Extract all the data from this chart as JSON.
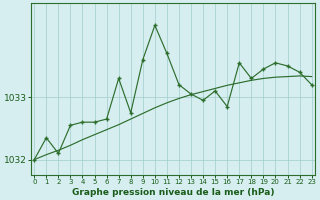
{
  "title": "Graphe pression niveau de la mer (hPa)",
  "background_color": "#d6eef0",
  "plot_background": "#d6eef0",
  "line_color": "#2d6e2d",
  "grid_color": "#a0cccc",
  "x_values": [
    0,
    1,
    2,
    3,
    4,
    5,
    6,
    7,
    8,
    9,
    10,
    11,
    12,
    13,
    14,
    15,
    16,
    17,
    18,
    19,
    20,
    21,
    22,
    23
  ],
  "y_main": [
    1032.0,
    1032.35,
    1032.1,
    1032.55,
    1032.6,
    1032.6,
    1032.65,
    1033.3,
    1032.75,
    1033.6,
    1034.15,
    1033.7,
    1033.2,
    1033.05,
    1032.95,
    1033.1,
    1032.85,
    1033.55,
    1033.3,
    1033.45,
    1033.55,
    1033.5,
    1033.4,
    1033.2
  ],
  "y_smooth": [
    1032.0,
    1032.08,
    1032.15,
    1032.23,
    1032.32,
    1032.4,
    1032.48,
    1032.56,
    1032.65,
    1032.74,
    1032.83,
    1032.91,
    1032.98,
    1033.04,
    1033.09,
    1033.14,
    1033.19,
    1033.23,
    1033.27,
    1033.3,
    1033.32,
    1033.33,
    1033.34,
    1033.33
  ],
  "ylim": [
    1031.75,
    1034.5
  ],
  "yticks": [
    1032,
    1033
  ],
  "xlim": [
    -0.3,
    23.3
  ],
  "xticks": [
    0,
    1,
    2,
    3,
    4,
    5,
    6,
    7,
    8,
    9,
    10,
    11,
    12,
    13,
    14,
    15,
    16,
    17,
    18,
    19,
    20,
    21,
    22,
    23
  ]
}
